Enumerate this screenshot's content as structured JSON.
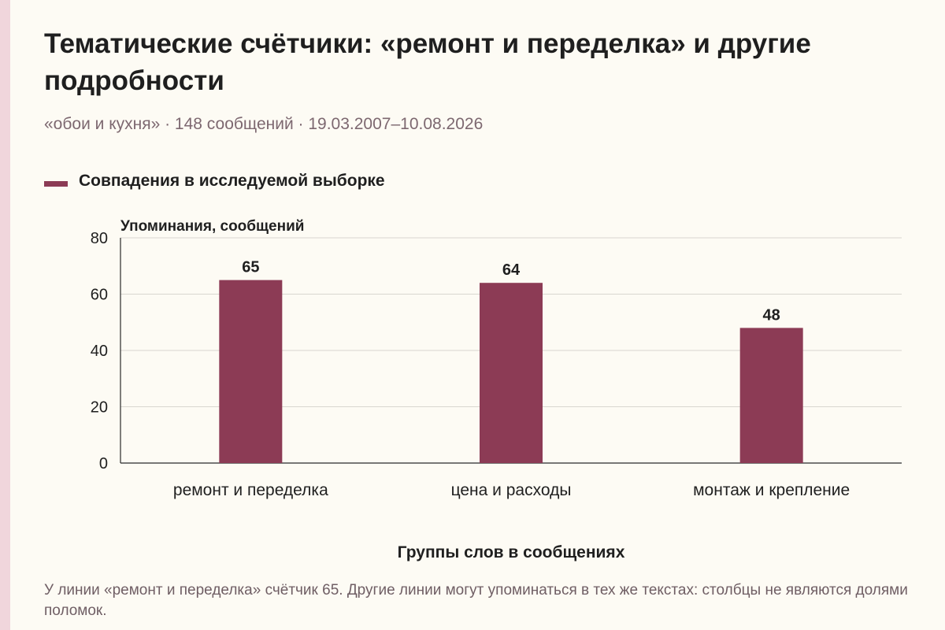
{
  "title": "Тематические счётчики: «ремонт и переделка» и другие подробности",
  "subtitle": "«обои и кухня» · 148 сообщений · 19.03.2007–10.08.2026",
  "note": "У линии «ремонт и переделка» счётчик 65. Другие линии могут упоминаться в тех же текстах: столбцы не являются долями поломок.",
  "colors": {
    "bar": "#8c3b55",
    "accent_strip": "#f0d6dc"
  },
  "chart_data": {
    "type": "bar",
    "categories": [
      "ремонт и переделка",
      "цена и расходы",
      "монтаж и крепление"
    ],
    "series": [
      {
        "name": "Совпадения в исследуемой выборке",
        "values": [
          65,
          64,
          48
        ]
      }
    ],
    "xlabel": "Группы слов в сообщениях",
    "ylabel": "Упоминания, сообщений",
    "ylim": [
      0,
      80
    ],
    "yticks": [
      0,
      20,
      40,
      60,
      80
    ],
    "grid": true,
    "legend": "top-left",
    "data_labels": true
  }
}
